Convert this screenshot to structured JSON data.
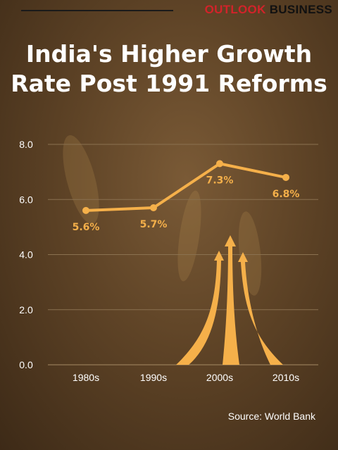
{
  "brand": {
    "part1": "OUTLOOK",
    "part2": "BUSINESS"
  },
  "title_line1": "India's Higher Growth",
  "title_line2": "Rate Post 1991 Reforms",
  "source": "Source: World Bank",
  "colors": {
    "accent": "#f5b04a",
    "grid": "#8a7150",
    "text": "#ffffff"
  },
  "chart_data": {
    "type": "line",
    "categories": [
      "1980s",
      "1990s",
      "2000s",
      "2010s"
    ],
    "series": [
      {
        "values": [
          5.6,
          5.7,
          7.3,
          6.8
        ]
      }
    ],
    "data_labels": [
      "5.6%",
      "5.7%",
      "7.3%",
      "6.8%"
    ],
    "yticks": [
      "0.0",
      "2.0",
      "4.0",
      "6.0",
      "8.0"
    ],
    "ytick_values": [
      0,
      2,
      4,
      6,
      8
    ],
    "ylim": [
      0,
      8
    ],
    "grid": true,
    "title": "India's Higher Growth Rate Post 1991 Reforms"
  }
}
